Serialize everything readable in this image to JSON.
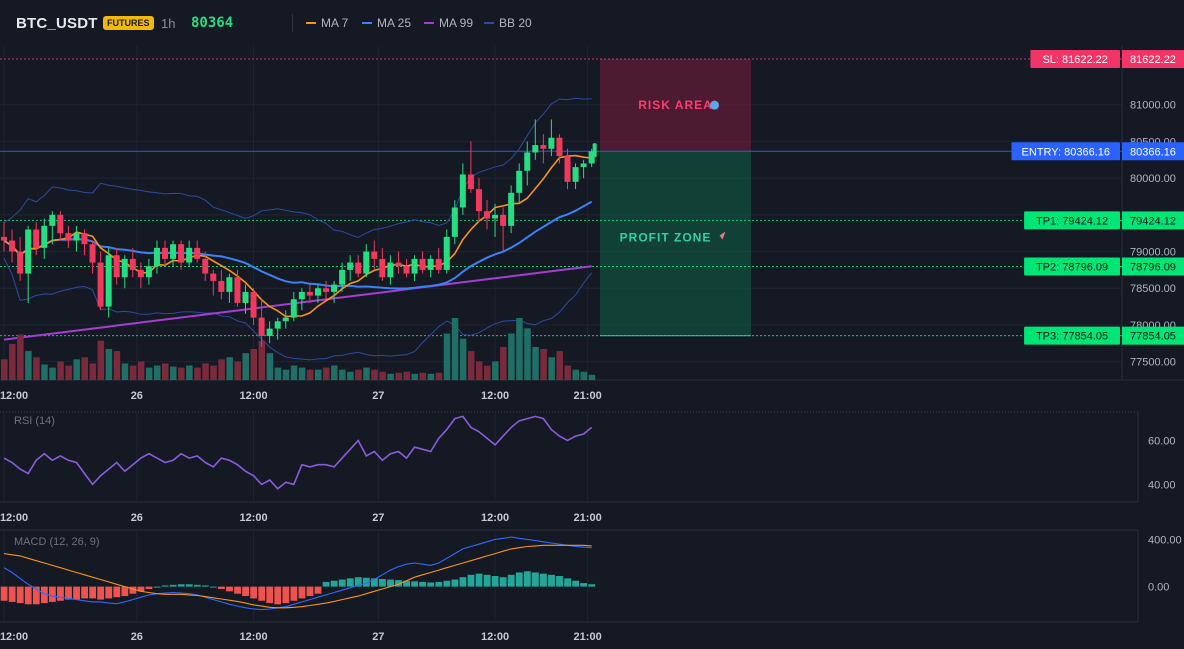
{
  "header": {
    "symbol": "BTC_USDT",
    "badge": "FUTURES",
    "timeframe": "1h",
    "last_price": "80364"
  },
  "legend": [
    {
      "name": "MA 7",
      "color": "#f7931a"
    },
    {
      "name": "MA 25",
      "color": "#3b82f6"
    },
    {
      "name": "MA 99",
      "color": "#a43ed1"
    },
    {
      "name": "BB 20",
      "color": "#2e4aa0"
    }
  ],
  "colors": {
    "up": "#26a69a",
    "up_bright": "#00e676",
    "down": "#ef3a5d",
    "bg": "#151924",
    "grid": "#1f2431"
  },
  "levels": {
    "sl": {
      "label": "SL: 81622.22",
      "value": 81622.22,
      "axis": "81622.22",
      "color": "#f23467"
    },
    "entry": {
      "label": "ENTRY: 80366.16",
      "value": 80366.16,
      "axis": "80366.16",
      "color": "#2962ff"
    },
    "tp1": {
      "label": "TP1: 79424.12",
      "value": 79424.12,
      "axis": "79424.12",
      "color": "#00e676"
    },
    "tp2": {
      "label": "TP2: 78796.09",
      "value": 78796.09,
      "axis": "78796.09",
      "color": "#00e676"
    },
    "tp3": {
      "label": "TP3: 77854.05",
      "value": 77854.05,
      "axis": "77854.05",
      "color": "#00e676"
    }
  },
  "zones": {
    "risk_label": "RISK AREA",
    "profit_label": "PROFIT ZONE"
  },
  "chart_data": [
    {
      "type": "candlestick",
      "title": "",
      "price_ticks": [
        "81000.00",
        "80500.00",
        "80000.00",
        "79500.00",
        "79000.00",
        "78500.00",
        "78000.00",
        "77500.00"
      ],
      "price_tick_values": [
        81000,
        80500,
        80000,
        79500,
        79000,
        78500,
        78000,
        77500
      ],
      "ylim": [
        77250,
        81800
      ],
      "x_ticks": [
        "12:00",
        "26",
        "12:00",
        "27",
        "12:00",
        "21:00"
      ],
      "x_tick_index": [
        0,
        16.5,
        31,
        46.5,
        61,
        72.5
      ],
      "candles": [
        [
          79200,
          79400,
          79000,
          79150
        ],
        [
          79150,
          79300,
          78850,
          79000
        ],
        [
          79000,
          79200,
          78600,
          78700
        ],
        [
          78700,
          79350,
          78300,
          79300
        ],
        [
          79300,
          79400,
          78950,
          79050
        ],
        [
          79050,
          79450,
          78900,
          79350
        ],
        [
          79350,
          79550,
          79100,
          79500
        ],
        [
          79500,
          79550,
          79150,
          79250
        ],
        [
          79250,
          79350,
          79050,
          79150
        ],
        [
          79150,
          79350,
          79000,
          79250
        ],
        [
          79250,
          79300,
          78950,
          79100
        ],
        [
          79100,
          79150,
          78700,
          78850
        ],
        [
          78850,
          79000,
          78200,
          78250
        ],
        [
          78250,
          79050,
          78100,
          78950
        ],
        [
          78950,
          79050,
          78550,
          78650
        ],
        [
          78650,
          78950,
          78500,
          78900
        ],
        [
          78900,
          79050,
          78650,
          78750
        ],
        [
          78750,
          78850,
          78500,
          78650
        ],
        [
          78650,
          78900,
          78550,
          78800
        ],
        [
          78800,
          79150,
          78700,
          79050
        ],
        [
          79050,
          79150,
          78800,
          78900
        ],
        [
          78900,
          79150,
          78800,
          79100
        ],
        [
          79100,
          79150,
          78750,
          78850
        ],
        [
          78850,
          79150,
          78800,
          79050
        ],
        [
          79050,
          79150,
          78850,
          78900
        ],
        [
          78900,
          79000,
          78600,
          78700
        ],
        [
          78700,
          78750,
          78400,
          78600
        ],
        [
          78600,
          78750,
          78350,
          78450
        ],
        [
          78450,
          78700,
          78300,
          78650
        ],
        [
          78650,
          78750,
          78250,
          78300
        ],
        [
          78300,
          78550,
          78150,
          78450
        ],
        [
          78450,
          78500,
          78000,
          78100
        ],
        [
          78100,
          78350,
          77700,
          77850
        ],
        [
          77850,
          78050,
          77750,
          77950
        ],
        [
          77950,
          78100,
          77800,
          78050
        ],
        [
          78050,
          78200,
          77950,
          78100
        ],
        [
          78100,
          78450,
          78050,
          78350
        ],
        [
          78350,
          78500,
          78200,
          78450
        ],
        [
          78450,
          78550,
          78300,
          78400
        ],
        [
          78400,
          78550,
          78300,
          78500
        ],
        [
          78500,
          78600,
          78350,
          78450
        ],
        [
          78450,
          78600,
          78300,
          78550
        ],
        [
          78550,
          78850,
          78450,
          78750
        ],
        [
          78750,
          78950,
          78600,
          78850
        ],
        [
          78850,
          78950,
          78650,
          78700
        ],
        [
          78700,
          79100,
          78650,
          79000
        ],
        [
          79000,
          79150,
          78750,
          78900
        ],
        [
          78900,
          79050,
          78600,
          78650
        ],
        [
          78650,
          78950,
          78550,
          78850
        ],
        [
          78850,
          79000,
          78700,
          78800
        ],
        [
          78800,
          78900,
          78650,
          78700
        ],
        [
          78700,
          78950,
          78600,
          78900
        ],
        [
          78900,
          79000,
          78700,
          78750
        ],
        [
          78750,
          78950,
          78650,
          78900
        ],
        [
          78900,
          79050,
          78700,
          78750
        ],
        [
          78750,
          79300,
          78700,
          79200
        ],
        [
          79200,
          79700,
          79100,
          79600
        ],
        [
          79600,
          80200,
          79500,
          80050
        ],
        [
          80050,
          80500,
          79800,
          79850
        ],
        [
          79850,
          80000,
          79400,
          79550
        ],
        [
          79550,
          79700,
          79300,
          79450
        ],
        [
          79450,
          79650,
          79200,
          79500
        ],
        [
          79500,
          79600,
          79000,
          79350
        ],
        [
          79350,
          79900,
          79250,
          79800
        ],
        [
          79800,
          80200,
          79650,
          80100
        ],
        [
          80100,
          80500,
          79900,
          80350
        ],
        [
          80350,
          80800,
          80250,
          80450
        ],
        [
          80450,
          80600,
          80200,
          80400
        ],
        [
          80400,
          80800,
          80300,
          80550
        ],
        [
          80550,
          80600,
          80200,
          80300
        ],
        [
          80300,
          80400,
          79850,
          79950
        ],
        [
          79950,
          80200,
          79850,
          80150
        ],
        [
          80150,
          80250,
          80000,
          80200
        ],
        [
          80200,
          80400,
          80150,
          80364
        ]
      ],
      "volume": [
        20,
        35,
        44,
        28,
        22,
        15,
        12,
        18,
        14,
        20,
        22,
        16,
        38,
        30,
        28,
        16,
        14,
        18,
        12,
        14,
        16,
        13,
        12,
        14,
        12,
        16,
        14,
        20,
        22,
        18,
        26,
        30,
        38,
        26,
        12,
        10,
        14,
        12,
        10,
        10,
        12,
        14,
        10,
        8,
        10,
        12,
        10,
        8,
        6,
        7,
        8,
        6,
        7,
        6,
        7,
        45,
        60,
        40,
        28,
        18,
        14,
        18,
        32,
        45,
        60,
        50,
        32,
        30,
        22,
        28,
        14,
        10,
        8,
        5
      ]
    },
    {
      "type": "line",
      "title": "RSI (14)",
      "y_ticks": [
        "60.00",
        "40.00"
      ],
      "y_tick_values": [
        60,
        40
      ],
      "ylim": [
        32,
        73
      ],
      "values": [
        52,
        50,
        47,
        45,
        51,
        54,
        51,
        53,
        51,
        50,
        45,
        40,
        44,
        47,
        50,
        46,
        49,
        52,
        54,
        52,
        50,
        51,
        54,
        52,
        53,
        50,
        48,
        52,
        51,
        49,
        46,
        44,
        40,
        42,
        38,
        41,
        40,
        49,
        48,
        49,
        49,
        48,
        52,
        56,
        60,
        53,
        55,
        51,
        54,
        55,
        52,
        57,
        56,
        55,
        61,
        65,
        70,
        71,
        66,
        64,
        61,
        58,
        62,
        66,
        69,
        70,
        71,
        70,
        65,
        62,
        60,
        62,
        63,
        66
      ],
      "x_ticks": [
        "12:00",
        "26",
        "12:00",
        "27",
        "12:00",
        "21:00"
      ]
    },
    {
      "type": "bar+line",
      "title": "MACD (12, 26, 9)",
      "y_ticks": [
        "400.00",
        "0.00"
      ],
      "y_tick_values": [
        400,
        0
      ],
      "ylim": [
        -300,
        480
      ],
      "histogram": [
        -120,
        -130,
        -140,
        -150,
        -150,
        -140,
        -130,
        -120,
        -110,
        -110,
        -100,
        -100,
        -110,
        -100,
        -90,
        -80,
        -60,
        -40,
        -20,
        0,
        10,
        15,
        20,
        20,
        15,
        10,
        0,
        -20,
        -40,
        -60,
        -80,
        -100,
        -120,
        -140,
        -150,
        -140,
        -120,
        -100,
        -80,
        -60,
        40,
        50,
        60,
        70,
        80,
        75,
        70,
        65,
        60,
        55,
        50,
        45,
        40,
        35,
        40,
        50,
        60,
        80,
        100,
        110,
        100,
        90,
        80,
        100,
        120,
        130,
        120,
        110,
        100,
        90,
        70,
        50,
        30,
        20
      ],
      "macd": [
        160,
        120,
        70,
        20,
        -20,
        -60,
        -80,
        -90,
        -100,
        -110,
        -120,
        -130,
        -130,
        -140,
        -145,
        -130,
        -110,
        -90,
        -70,
        -60,
        -55,
        -50,
        -55,
        -60,
        -70,
        -90,
        -110,
        -130,
        -150,
        -165,
        -180,
        -190,
        -195,
        -190,
        -180,
        -170,
        -150,
        -130,
        -110,
        -90,
        -70,
        -50,
        -30,
        -10,
        10,
        30,
        60,
        100,
        140,
        170,
        190,
        200,
        190,
        180,
        200,
        240,
        280,
        320,
        340,
        360,
        380,
        400,
        410,
        420,
        410,
        400,
        390,
        380,
        370,
        360,
        350,
        340,
        335,
        330
      ],
      "signal": [
        280,
        270,
        260,
        240,
        220,
        200,
        180,
        160,
        140,
        120,
        100,
        80,
        60,
        40,
        20,
        0,
        -20,
        -40,
        -50,
        -60,
        -65,
        -65,
        -65,
        -70,
        -75,
        -85,
        -95,
        -105,
        -115,
        -125,
        -140,
        -155,
        -165,
        -175,
        -180,
        -180,
        -175,
        -170,
        -160,
        -150,
        -140,
        -125,
        -110,
        -95,
        -80,
        -60,
        -40,
        -20,
        0,
        20,
        50,
        80,
        100,
        120,
        140,
        160,
        180,
        200,
        220,
        240,
        260,
        280,
        300,
        320,
        330,
        340,
        345,
        350,
        350,
        350,
        350,
        350,
        350,
        345
      ],
      "x_ticks": [
        "12:00",
        "26",
        "12:00",
        "27",
        "12:00",
        "21:00"
      ]
    }
  ]
}
